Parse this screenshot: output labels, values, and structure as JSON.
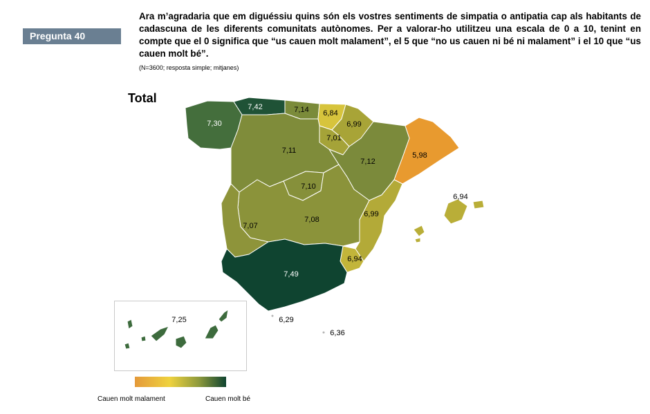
{
  "header": {
    "badge": "Pregunta 40",
    "question": "Ara m’agradaria que em diguéssiu quins són els vostres sentiments de simpatia o antipatia cap als habitants de cadascuna de les diferents comunitats autònomes. Per a valorar-ho utilitzeu una escala de 0 a 10, tenint en compte que el 0 significa que “us cauen molt malament”, el 5 que “no us cauen ni bé ni malament” i el 10 que “us cauen molt bé”.",
    "note": "(N=3600; resposta simple; mitjanes)"
  },
  "map": {
    "title": "Total",
    "regions": [
      {
        "id": "galicia",
        "value": "7,30",
        "color": "#446e3c"
      },
      {
        "id": "asturias",
        "value": "7,42",
        "color": "#1f5236"
      },
      {
        "id": "cantabria",
        "value": "7,14",
        "color": "#7b8b3a"
      },
      {
        "id": "pais-basc",
        "value": "6,84",
        "color": "#d7c43c"
      },
      {
        "id": "navarra",
        "value": "6,99",
        "color": "#a8a437"
      },
      {
        "id": "castella-lleo",
        "value": "7,11",
        "color": "#7f8c3a"
      },
      {
        "id": "la-rioja",
        "value": "7,01",
        "color": "#a5a338"
      },
      {
        "id": "arago",
        "value": "7,12",
        "color": "#7b8a3b"
      },
      {
        "id": "catalunya",
        "value": "5,98",
        "color": "#e89a2f"
      },
      {
        "id": "madrid",
        "value": "7,10",
        "color": "#86903a"
      },
      {
        "id": "castella-la-manxa",
        "value": "7,08",
        "color": "#8b933a"
      },
      {
        "id": "extremadura",
        "value": "7,07",
        "color": "#8e943a"
      },
      {
        "id": "pais-valencia",
        "value": "6,99",
        "color": "#b3aa38"
      },
      {
        "id": "murcia",
        "value": "6,94",
        "color": "#c2b53a"
      },
      {
        "id": "balears",
        "value": "6,94",
        "color": "#b9ae38"
      },
      {
        "id": "andalusia",
        "value": "7,49",
        "color": "#0f4430"
      },
      {
        "id": "ceuta",
        "value": "6,29",
        "color": "#b4b4b4"
      },
      {
        "id": "melilla",
        "value": "6,36",
        "color": "#b4b4b4"
      },
      {
        "id": "canaries",
        "value": "7,25",
        "color": "#3d6b3d"
      }
    ]
  },
  "legend": {
    "low_label": "Cauen molt malament",
    "high_label": "Cauen molt bé",
    "colors": [
      "#e4993a",
      "#efd23e",
      "#8e9a3c",
      "#0f4430"
    ]
  }
}
